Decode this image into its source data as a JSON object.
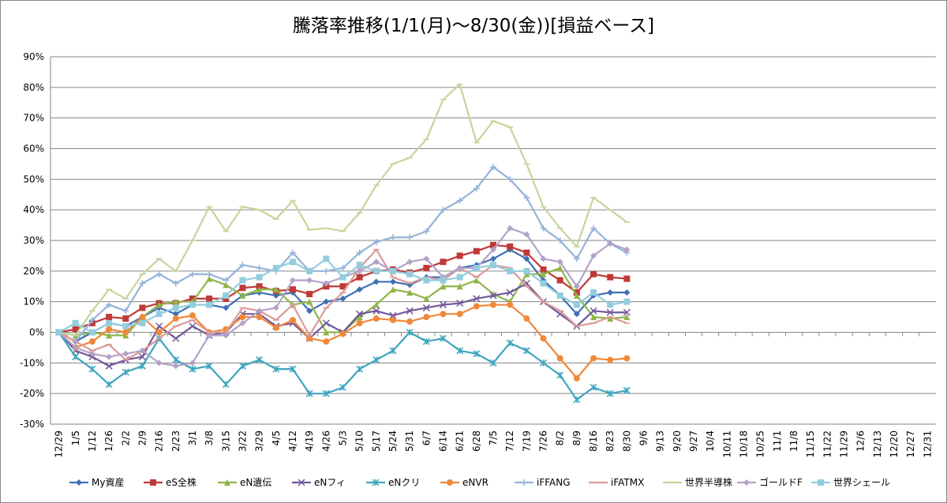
{
  "chart_data": {
    "type": "line",
    "title": "騰落率推移(1/1(月)～8/30(金))[損益ベース]",
    "categories": [
      "12/29",
      "1/5",
      "1/12",
      "1/26",
      "2/2",
      "2/9",
      "2/16",
      "2/23",
      "3/1",
      "3/8",
      "3/15",
      "3/22",
      "3/29",
      "4/5",
      "4/12",
      "4/19",
      "4/26",
      "5/3",
      "5/10",
      "5/17",
      "5/24",
      "5/31",
      "6/7",
      "6/14",
      "6/21",
      "6/28",
      "7/5",
      "7/12",
      "7/19",
      "7/26",
      "8/2",
      "8/9",
      "8/16",
      "8/23",
      "8/30",
      "9/6",
      "9/13",
      "9/20",
      "9/27",
      "10/4",
      "10/11",
      "10/18",
      "10/25",
      "11/1",
      "11/8",
      "11/15",
      "11/22",
      "11/29",
      "12/6",
      "12/13",
      "12/20",
      "12/27",
      "12/31"
    ],
    "series": [
      {
        "name": "My資産",
        "color": "#3f6fb5",
        "marker": "diamond",
        "values": [
          0,
          -3,
          0,
          3,
          2,
          5,
          8,
          6,
          9,
          9,
          8,
          12,
          13,
          12,
          13,
          7,
          10,
          11,
          14,
          16.5,
          16.5,
          15.5,
          18,
          18,
          21,
          22,
          24,
          27,
          24,
          17,
          12,
          6,
          12,
          13,
          13,
          null,
          null,
          null,
          null,
          null,
          null,
          null,
          null,
          null,
          null,
          null,
          null,
          null,
          null,
          null,
          null,
          null,
          null
        ]
      },
      {
        "name": "eS全株",
        "color": "#be3a37",
        "marker": "square",
        "values": [
          0,
          1,
          3,
          5,
          4.5,
          8,
          9.5,
          9.5,
          11,
          11,
          11,
          14.5,
          15,
          13.5,
          14,
          12.5,
          15,
          15,
          18,
          20,
          20.5,
          19.5,
          21,
          23,
          25,
          26.5,
          28.5,
          28,
          26,
          20.5,
          17,
          13,
          19,
          18,
          17.5,
          null,
          null,
          null,
          null,
          null,
          null,
          null,
          null,
          null,
          null,
          null,
          null,
          null,
          null,
          null,
          null,
          null,
          null
        ]
      },
      {
        "name": "eN遺伝",
        "color": "#8fb54a",
        "marker": "triangle",
        "values": [
          0,
          -1,
          0,
          -1,
          -1,
          5,
          9,
          10,
          10,
          17.5,
          15.5,
          12,
          14,
          14,
          9,
          10,
          0,
          0,
          5,
          9,
          14,
          13,
          11,
          15,
          15,
          17,
          12.5,
          10,
          19,
          19,
          21,
          12,
          5,
          4.5,
          5,
          null,
          null,
          null,
          null,
          null,
          null,
          null,
          null,
          null,
          null,
          null,
          null,
          null,
          null,
          null,
          null,
          null,
          null
        ]
      },
      {
        "name": "eNフィ",
        "color": "#71589a",
        "marker": "x",
        "values": [
          0,
          -6,
          -8,
          -11,
          -9,
          -8,
          2,
          -2,
          2,
          -1,
          0,
          6,
          6,
          2,
          3,
          -2,
          3,
          0,
          6,
          7,
          5.5,
          7,
          8,
          9,
          9.5,
          11,
          12,
          13,
          16,
          10,
          6,
          2,
          7,
          6.5,
          6.5,
          null,
          null,
          null,
          null,
          null,
          null,
          null,
          null,
          null,
          null,
          null,
          null,
          null,
          null,
          null,
          null,
          null,
          null
        ]
      },
      {
        "name": "eNクリ",
        "color": "#3ea5bf",
        "marker": "star",
        "values": [
          0,
          -8,
          -12,
          -17,
          -13,
          -11,
          -2,
          -9,
          -12,
          -11,
          -17,
          -11,
          -9,
          -12,
          -12,
          -20,
          -20,
          -18,
          -12,
          -9,
          -6,
          0,
          -3,
          -2,
          -6,
          -7,
          -10,
          -3.5,
          -6,
          -10,
          -14,
          -22,
          -18,
          -20,
          -19,
          null,
          null,
          null,
          null,
          null,
          null,
          null,
          null,
          null,
          null,
          null,
          null,
          null,
          null,
          null,
          null,
          null,
          null
        ]
      },
      {
        "name": "eNVR",
        "color": "#f0883a",
        "marker": "circle",
        "values": [
          0,
          -5,
          -3,
          1,
          0,
          5,
          0,
          4.5,
          5.5,
          0,
          1,
          5,
          5,
          1.5,
          4,
          -2,
          -3,
          -0.5,
          3,
          4.5,
          4,
          3.5,
          5,
          6,
          6,
          8.5,
          9,
          9,
          4.5,
          -2,
          -8.5,
          -15,
          -8.5,
          -9,
          -8.5,
          null,
          null,
          null,
          null,
          null,
          null,
          null,
          null,
          null,
          null,
          null,
          null,
          null,
          null,
          null,
          null,
          null,
          null
        ]
      },
      {
        "name": "iFFANG",
        "color": "#95b3d7",
        "marker": "plus",
        "values": [
          0,
          -3,
          4,
          9,
          7,
          16,
          19,
          16,
          19,
          19,
          17,
          22,
          21,
          20,
          26,
          20,
          20,
          21,
          26,
          29.5,
          31,
          31,
          33,
          40,
          43,
          47,
          54,
          50,
          44,
          34,
          30,
          24,
          34,
          29,
          26,
          null,
          null,
          null,
          null,
          null,
          null,
          null,
          null,
          null,
          null,
          null,
          null,
          null,
          null,
          null,
          null,
          null,
          null
        ]
      },
      {
        "name": "iFATMX",
        "color": "#dc9a98",
        "marker": "dash",
        "values": [
          0,
          -3,
          -6,
          -4,
          -9,
          -6,
          -2,
          2,
          4,
          0,
          0,
          8,
          7,
          4,
          9,
          -1,
          8,
          13,
          21,
          27,
          18,
          16,
          18,
          17,
          21,
          18,
          22,
          21,
          15,
          10,
          7,
          2,
          3,
          5,
          3,
          null,
          null,
          null,
          null,
          null,
          null,
          null,
          null,
          null,
          null,
          null,
          null,
          null,
          null,
          null,
          null,
          null,
          null
        ]
      },
      {
        "name": "世界半導株",
        "color": "#c3d69b",
        "marker": "dash",
        "values": [
          0,
          -1,
          7,
          14,
          11,
          19,
          24,
          20,
          30,
          41,
          33,
          41,
          40,
          37,
          43,
          33.5,
          34,
          33,
          39,
          48,
          55,
          57,
          63,
          76,
          81,
          62,
          69,
          67,
          55,
          41,
          34,
          28,
          44,
          40,
          36,
          null,
          null,
          null,
          null,
          null,
          null,
          null,
          null,
          null,
          null,
          null,
          null,
          null,
          null,
          null,
          null,
          null,
          null
        ]
      },
      {
        "name": "ゴールドF",
        "color": "#b3a2c7",
        "marker": "diamond",
        "values": [
          0,
          -5,
          -7,
          -8,
          -7,
          -6,
          -10,
          -11,
          -10,
          -1,
          -1,
          3,
          7,
          8,
          17,
          17,
          16,
          18,
          20,
          23,
          20,
          23,
          24,
          18,
          21,
          21,
          27,
          34,
          32,
          24,
          23,
          15,
          25,
          29,
          27,
          null,
          null,
          null,
          null,
          null,
          null,
          null,
          null,
          null,
          null,
          null,
          null,
          null,
          null,
          null,
          null,
          null,
          null
        ]
      },
      {
        "name": "世界シェール",
        "color": "#93cddd",
        "marker": "square",
        "values": [
          0,
          3,
          0,
          3,
          2,
          3,
          6,
          8,
          9,
          9,
          12,
          17,
          18,
          21,
          23,
          20,
          24,
          18,
          22,
          20,
          20,
          19,
          17,
          17,
          18,
          21,
          22,
          20,
          20,
          16,
          12,
          9,
          13,
          9,
          10,
          null,
          null,
          null,
          null,
          null,
          null,
          null,
          null,
          null,
          null,
          null,
          null,
          null,
          null,
          null,
          null,
          null,
          null
        ]
      }
    ],
    "ylim": [
      -30,
      90
    ],
    "yticks": [
      {
        "value": -30,
        "label": "-30%"
      },
      {
        "value": -20,
        "label": "-20%"
      },
      {
        "value": -10,
        "label": "-10%"
      },
      {
        "value": 0,
        "label": "0%"
      },
      {
        "value": 10,
        "label": "10%"
      },
      {
        "value": 20,
        "label": "20%"
      },
      {
        "value": 30,
        "label": "30%"
      },
      {
        "value": 40,
        "label": "40%"
      },
      {
        "value": 50,
        "label": "50%"
      },
      {
        "value": 60,
        "label": "60%"
      },
      {
        "value": 70,
        "label": "70%"
      },
      {
        "value": 80,
        "label": "80%"
      },
      {
        "value": 90,
        "label": "90%"
      }
    ],
    "grid": true,
    "legend": "bottom"
  }
}
